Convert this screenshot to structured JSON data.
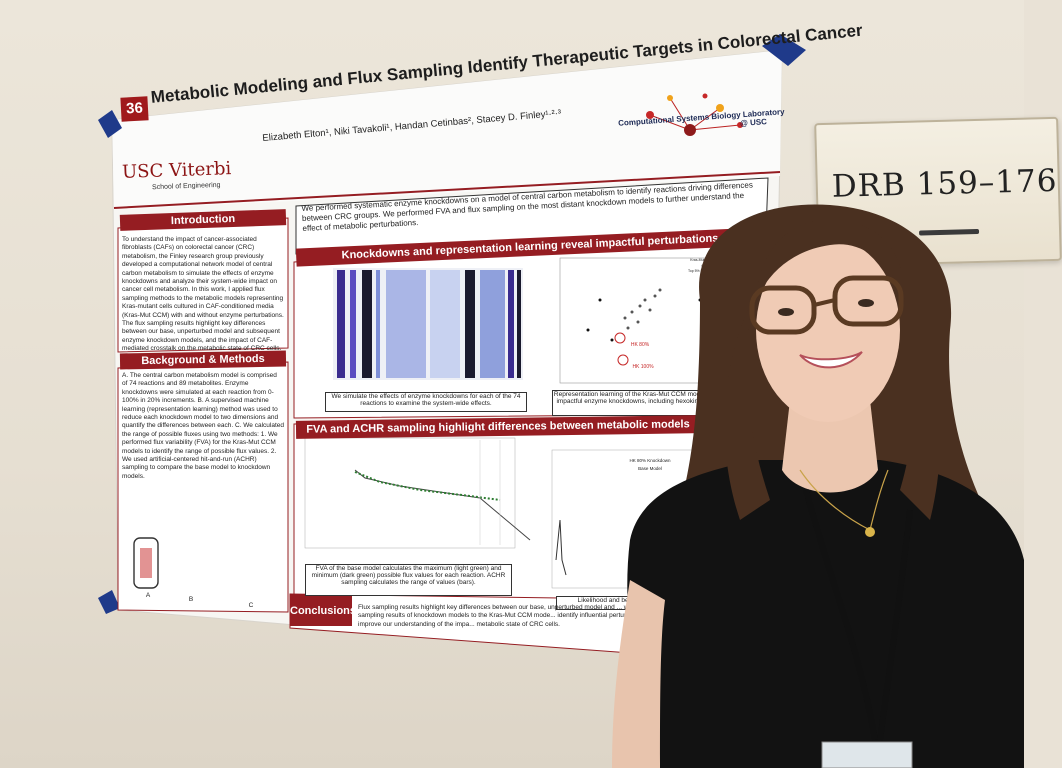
{
  "room_sign": {
    "text": "DRB 159–176"
  },
  "poster": {
    "number": "36",
    "title": "Metabolic Modeling and Flux Sampling Identify Therapeutic Targets in Colorectal Cancer",
    "authors": "Elizabeth Elton¹, Niki Tavakoli¹, Handan Cetinbas², Stacey D. Finley¹·²·³",
    "school_logo": "USC Viterbi",
    "school_sub": "School of Engineering",
    "lab_name": "Computational Systems Biology Laboratory",
    "lab_suffix": "@ USC",
    "sections": {
      "introduction": "Introduction",
      "background": "Background & Methods",
      "knockdowns": "Knockdowns and representation learning reveal impactful perturbations",
      "fva": "FVA and ACHR sampling highlight differences between metabolic models",
      "conclusions": "Conclusions"
    },
    "lead_text": "We performed systematic enzyme knockdowns on a model of central carbon metabolism to identify reactions driving differences between CRC groups. We performed FVA and flux sampling on the most distant knockdown models to further understand the effect of metabolic perturbations.",
    "intro_text": "To understand the impact of cancer-associated fibroblasts (CAFs) on colorectal cancer (CRC) metabolism, the Finley research group previously developed a computational network model of central carbon metabolism to simulate the effects of enzyme knockdowns and analyze their system-wide impact on cancer cell metabolism. In this work, I applied flux sampling methods to the metabolic models representing Kras-mutant cells cultured in CAF-conditioned media (Kras-Mut CCM) with and without enzyme perturbations. The flux sampling results highlight key differences between our base, unperturbed model and subsequent enzyme knockdown models, and the impact of CAF-mediated crosstalk on the metabolic state of CRC cells.",
    "methods_text": "A. The central carbon metabolism model is comprised of 74 reactions and 89 metabolites. Enzyme knockdowns were simulated at each reaction from 0-100% in 20% increments. B. A supervised machine learning (representation learning) method was used to reduce each knockdown model to two dimensions and quantify the differences between each. C. We calculated the range of possible fluxes using two methods: 1. We performed flux variability (FVA) for the Kras-Mut CCM models to identify the range of possible flux values. 2. We used artificial-centered hit-and-run (ACHR) sampling to compare the base model to knockdown models.",
    "method_labels": [
      "A",
      "B",
      "C"
    ],
    "caption_heatmap": "We simulate the effects of enzyme knockdowns for each of the 74 reactions to examine the system-wide effects.",
    "caption_scatter": "Representation learning of the Kras-Mut CCM model reveals impactful enzyme knockdowns, including hexokinase (HK).",
    "caption_fva": "FVA of the base model calculates the maximum (light green) and minimum (dark green) possible flux values for each reaction. ACHR sampling calculates the range of values (bars).",
    "caption_hist": "Likelihood and between base mod",
    "scatter_labels": [
      "HK 80%",
      "HK 100%"
    ],
    "scatter_legend": [
      "Kras-Mut CCM Models",
      "Centroid",
      "Top 5% Furthest Models from Centroid"
    ],
    "hist_legend": [
      "HK 80% Knockdown",
      "Base Model"
    ],
    "conclusion_text": "Flux sampling results highlight key differences between our base, unperturbed model and ... work will compare the sampling results of knockdown models to the Kras-Mut CCM mode... identify influential perturbations. These results improve our understanding of the impa... metabolic state of CRC cells."
  },
  "colors": {
    "poster_red": "#951d22",
    "wall": "#e9e2d6",
    "tape": "#1f3a8a",
    "shirt": "#121212",
    "hair": "#4a3020"
  }
}
